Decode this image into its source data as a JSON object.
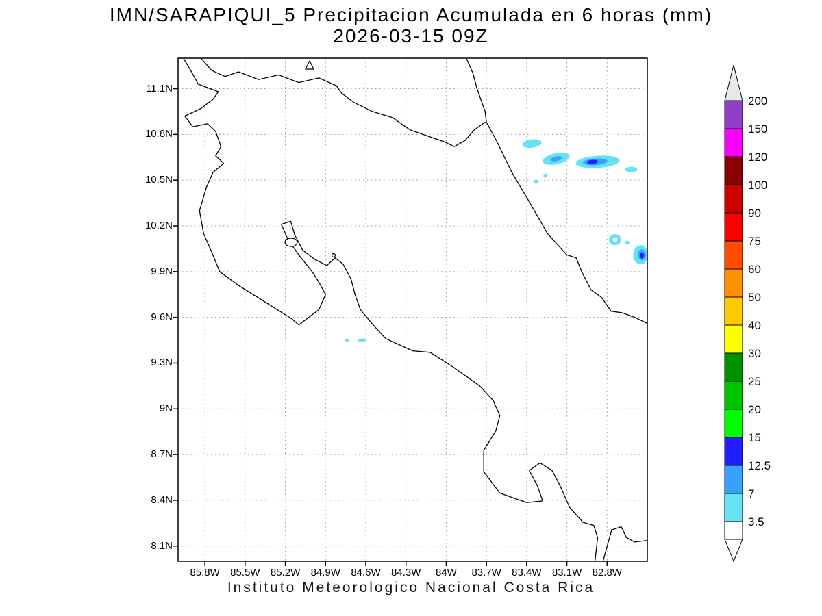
{
  "title": {
    "line1": "IMN/SARAPIQUI_5 Precipitacion Acumulada en 6 horas (mm)",
    "line2": "2026-03-15 09Z"
  },
  "footer": "Instituto Meteorologico Nacional Costa Rica",
  "map": {
    "lat_ticks": [
      "11.1N",
      "10.8N",
      "10.5N",
      "10.2N",
      "9.9N",
      "9.6N",
      "9.3N",
      "9N",
      "8.7N",
      "8.4N",
      "8.1N"
    ],
    "lon_ticks": [
      "85.8W",
      "85.5W",
      "85.2W",
      "84.9W",
      "84.6W",
      "84.3W",
      "84W",
      "83.7W",
      "83.4W",
      "83.1W",
      "82.8W"
    ]
  },
  "colorbar": {
    "labels": [
      "200",
      "150",
      "120",
      "100",
      "90",
      "75",
      "60",
      "50",
      "40",
      "30",
      "25",
      "20",
      "15",
      "12.5",
      "7",
      "3.5"
    ],
    "colors": [
      "#e8e8e8",
      "#8f3fc8",
      "#fa00fa",
      "#8b0000",
      "#cd0000",
      "#ff0000",
      "#ff4d00",
      "#ff9000",
      "#ffc800",
      "#ffff00",
      "#009100",
      "#00c300",
      "#00ff00",
      "#2020ff",
      "#39a1ff",
      "#66e3f2",
      "#ffffff"
    ]
  },
  "chart_data": {
    "type": "heatmap",
    "title": "IMN/SARAPIQUI_5 Precipitacion Acumulada en 6 horas (mm)",
    "valid_time": "2026-03-15 09Z",
    "units": "mm",
    "source_caption": "Instituto Meteorologico Nacional Costa Rica",
    "model_run": "IMN/SARAPIQUI_5",
    "lon_range_w": [
      86.0,
      82.5
    ],
    "lat_range_n": [
      11.3,
      8.0
    ],
    "lat_tick_values": [
      11.1,
      10.8,
      10.5,
      10.2,
      9.9,
      9.6,
      9.3,
      9.0,
      8.7,
      8.4,
      8.1
    ],
    "lon_tick_values": [
      85.8,
      85.5,
      85.2,
      84.9,
      84.6,
      84.3,
      84.0,
      83.7,
      83.4,
      83.1,
      82.8
    ],
    "colorbar_levels": [
      3.5,
      7,
      12.5,
      15,
      20,
      25,
      30,
      40,
      50,
      60,
      75,
      90,
      100,
      120,
      150,
      200
    ],
    "grid": true,
    "legend_position": "right-colorbar",
    "precip_patches": [
      {
        "lon": 83.36,
        "lat": 10.74,
        "rx": 0.072,
        "ry": 0.027,
        "rot": -8,
        "color": "#66e3f2",
        "range_mm": "3.5-7"
      },
      {
        "lon": 83.18,
        "lat": 10.64,
        "rx": 0.102,
        "ry": 0.036,
        "rot": -12,
        "color": "#66e3f2",
        "range_mm": "3.5-7"
      },
      {
        "lon": 83.18,
        "lat": 10.64,
        "rx": 0.044,
        "ry": 0.015,
        "rot": -12,
        "color": "#39a1ff",
        "range_mm": "7-12.5"
      },
      {
        "lon": 82.87,
        "lat": 10.62,
        "rx": 0.164,
        "ry": 0.04,
        "rot": -4,
        "color": "#66e3f2",
        "range_mm": "3.5-7"
      },
      {
        "lon": 82.89,
        "lat": 10.62,
        "rx": 0.092,
        "ry": 0.022,
        "rot": -4,
        "color": "#39a1ff",
        "range_mm": "7-12.5"
      },
      {
        "lon": 82.91,
        "lat": 10.62,
        "rx": 0.041,
        "ry": 0.013,
        "rot": -4,
        "color": "#2020ff",
        "range_mm": "12.5-15"
      },
      {
        "lon": 82.62,
        "lat": 10.57,
        "rx": 0.046,
        "ry": 0.018,
        "rot": 0,
        "color": "#66e3f2",
        "range_mm": "3.5-7"
      },
      {
        "lon": 83.33,
        "lat": 10.49,
        "rx": 0.02,
        "ry": 0.013,
        "rot": 0,
        "color": "#66e3f2",
        "range_mm": "3.5-7"
      },
      {
        "lon": 83.26,
        "lat": 10.53,
        "rx": 0.015,
        "ry": 0.013,
        "rot": 0,
        "color": "#66e3f2",
        "range_mm": "3.5-7"
      },
      {
        "lon": 82.74,
        "lat": 10.11,
        "rx": 0.046,
        "ry": 0.036,
        "rot": 0,
        "color": "#66e3f2",
        "range_mm": "3.5-7"
      },
      {
        "lon": 82.74,
        "lat": 10.11,
        "rx": 0.018,
        "ry": 0.015,
        "rot": 0,
        "color": "#ffffff",
        "range_mm": "<3.5"
      },
      {
        "lon": 82.65,
        "lat": 10.09,
        "rx": 0.018,
        "ry": 0.013,
        "rot": 0,
        "color": "#66e3f2",
        "range_mm": "3.5-7"
      },
      {
        "lon": 82.55,
        "lat": 10.01,
        "rx": 0.056,
        "ry": 0.063,
        "rot": 0,
        "color": "#66e3f2",
        "range_mm": "3.5-7"
      },
      {
        "lon": 82.54,
        "lat": 10.01,
        "rx": 0.031,
        "ry": 0.036,
        "rot": 0,
        "color": "#39a1ff",
        "range_mm": "7-12.5"
      },
      {
        "lon": 82.54,
        "lat": 10.005,
        "rx": 0.016,
        "ry": 0.019,
        "rot": 0,
        "color": "#2020ff",
        "range_mm": "12.5-15"
      },
      {
        "lon": 84.74,
        "lat": 9.45,
        "rx": 0.013,
        "ry": 0.011,
        "rot": 0,
        "color": "#66e3f2",
        "range_mm": "3.5-7"
      },
      {
        "lon": 84.63,
        "lat": 9.45,
        "rx": 0.031,
        "ry": 0.011,
        "rot": 0,
        "color": "#66e3f2",
        "range_mm": "3.5-7"
      }
    ]
  }
}
